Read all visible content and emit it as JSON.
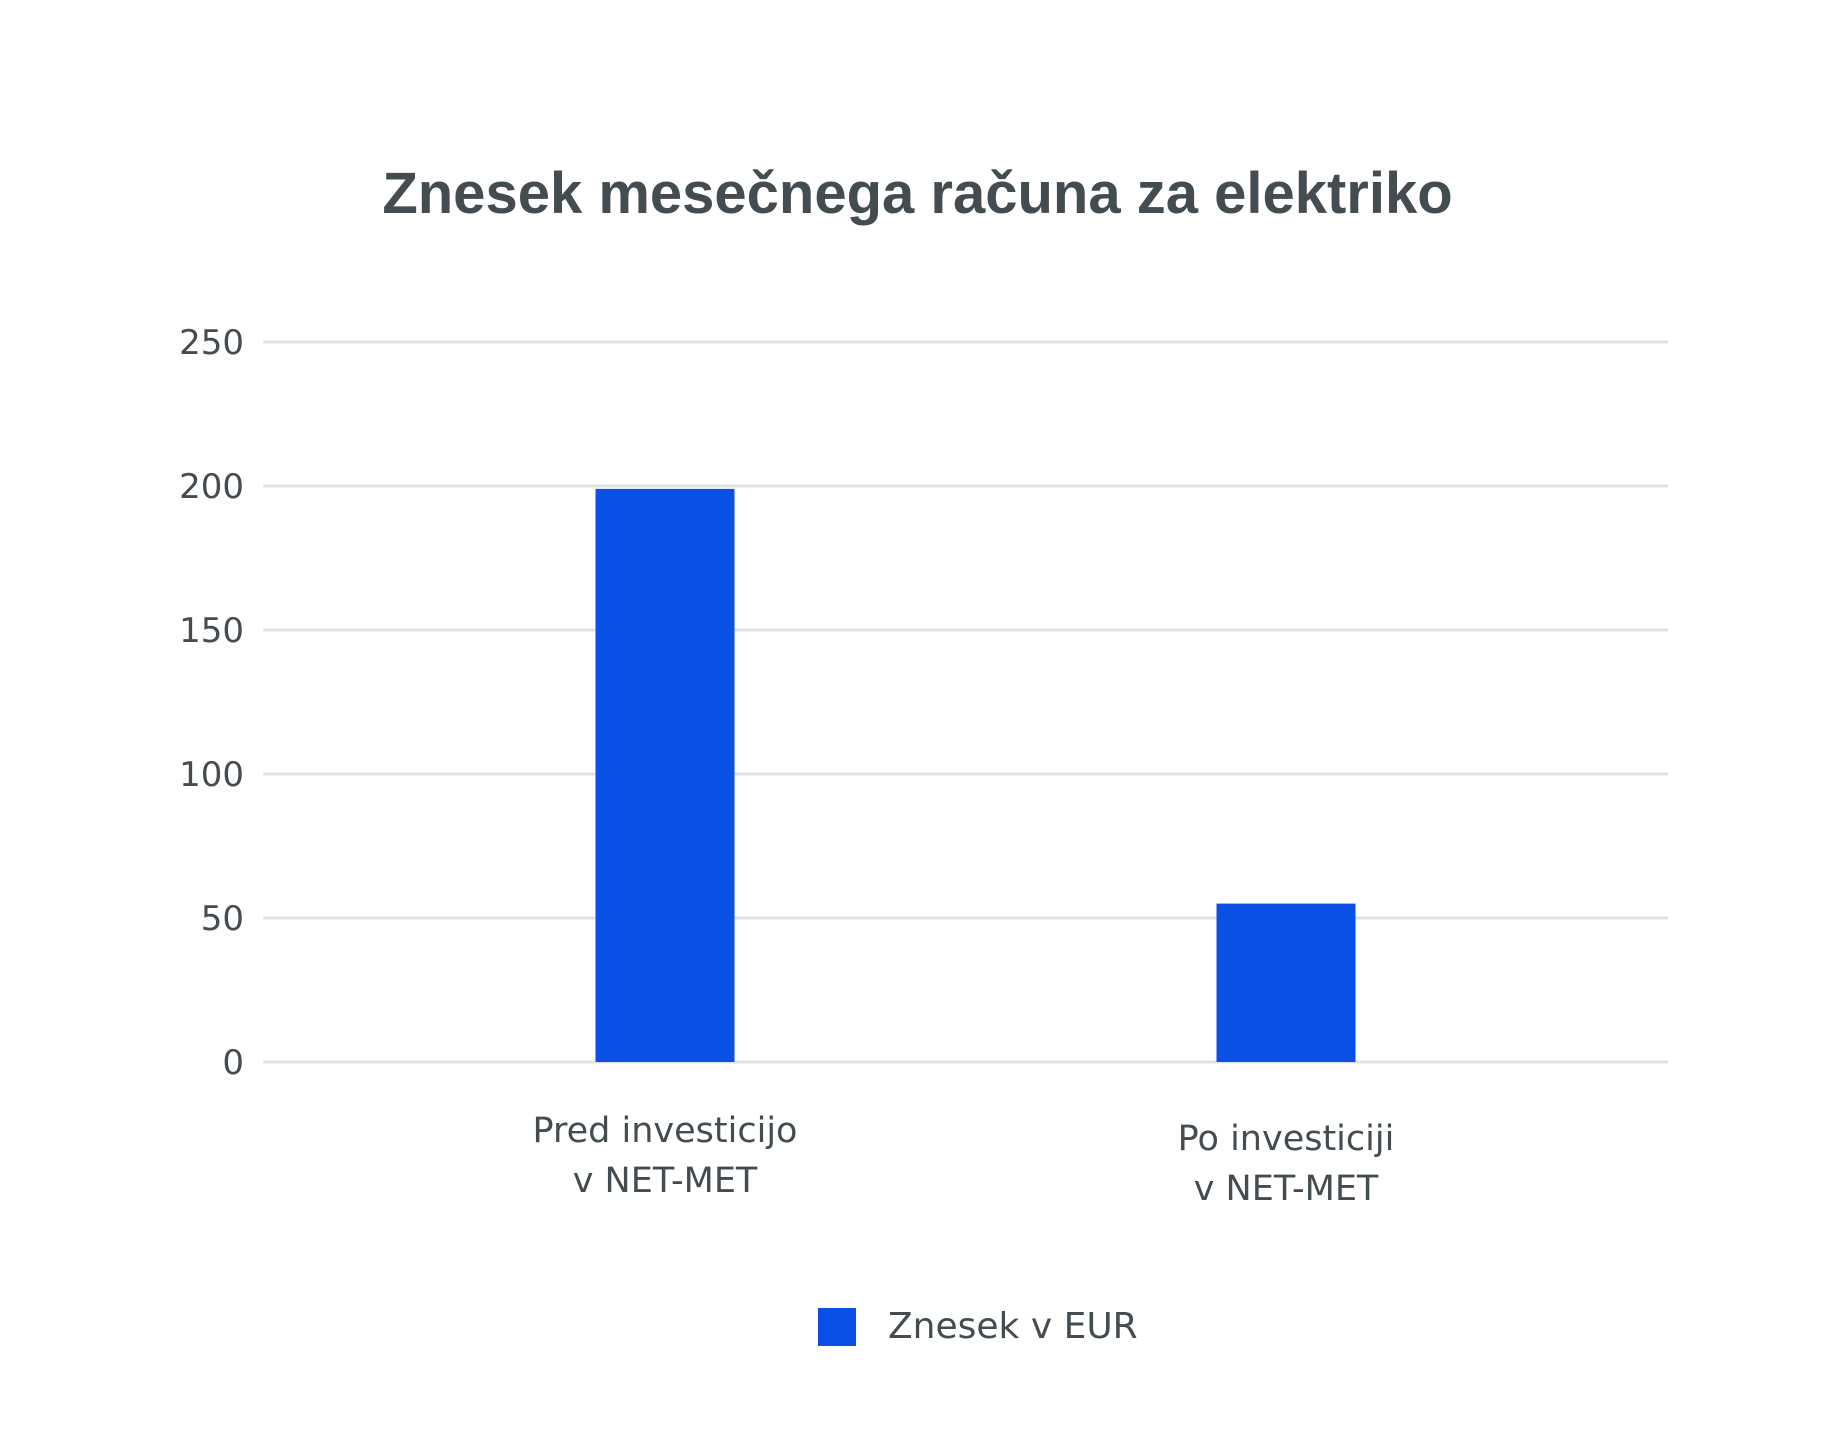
{
  "chart_data": {
    "type": "bar",
    "title": "Znesek mesečnega računa za elektriko",
    "categories": [
      [
        "Pred investicijo",
        "v NET-MET"
      ],
      [
        "Po investiciji",
        "v NET-MET"
      ]
    ],
    "series": [
      {
        "name": "Znesek v EUR",
        "values": [
          199,
          55
        ],
        "color": "#0a4fe6"
      }
    ],
    "ylim": [
      0,
      250
    ],
    "yticks": [
      "0",
      "50",
      "100",
      "150",
      "200",
      "250"
    ],
    "grid": true,
    "gridline_color": "#dde3e5",
    "legend_position": "bottom-center"
  }
}
